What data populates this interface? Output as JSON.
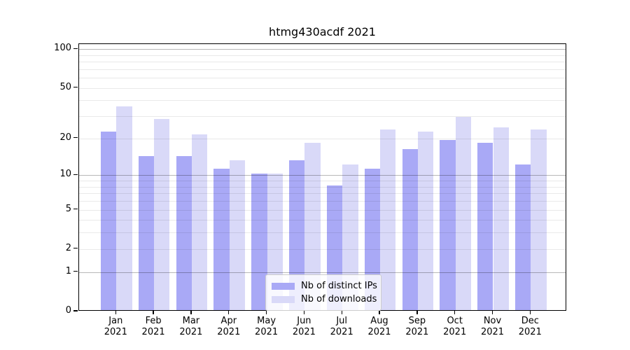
{
  "figure": {
    "title": "htmg430acdf 2021",
    "background": "#ffffff",
    "axis_color": "#000000"
  },
  "chart_data": {
    "type": "bar",
    "title": "htmg430acdf 2021",
    "categories": [
      "Jan 2021",
      "Feb 2021",
      "Mar 2021",
      "Apr 2021",
      "May 2021",
      "Jun 2021",
      "Jul 2021",
      "Aug 2021",
      "Sep 2021",
      "Oct 2021",
      "Nov 2021",
      "Dec 2021"
    ],
    "months": [
      "Jan",
      "Feb",
      "Mar",
      "Apr",
      "May",
      "Jun",
      "Jul",
      "Aug",
      "Sep",
      "Oct",
      "Nov",
      "Dec"
    ],
    "year_label": "2021",
    "series": [
      {
        "name": "Nb of distinct IPs",
        "color": "#a9a9f6",
        "values": [
          22,
          14,
          14,
          11,
          10,
          13,
          8,
          11,
          16,
          19,
          18,
          12
        ]
      },
      {
        "name": "Nb of downloads",
        "color": "#d9d9f8",
        "values": [
          35,
          28,
          21,
          13,
          10,
          18,
          12,
          23,
          22,
          29,
          24,
          23
        ]
      }
    ],
    "yscale": "log10(value+1)",
    "ylim": [
      0,
      110
    ],
    "ytick_values": [
      100,
      50,
      20,
      10,
      5,
      2,
      1,
      0
    ],
    "grid_minor_values": [
      2,
      3,
      4,
      5,
      6,
      7,
      8,
      9,
      20,
      30,
      40,
      50,
      60,
      70,
      80,
      90
    ],
    "grid_major_values": [
      1,
      10,
      100
    ],
    "grid": "horizontal, minor light / major darker, drawn over bars",
    "legend_position": "inside lower center",
    "xlabel": "",
    "ylabel": ""
  }
}
